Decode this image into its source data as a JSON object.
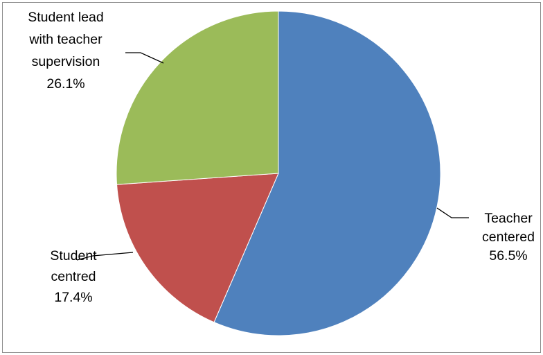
{
  "chart_data": {
    "type": "pie",
    "title": "",
    "slices": [
      {
        "label_lines": [
          "Teacher",
          "centered"
        ],
        "pct_label": "56.5%",
        "value": 56.5,
        "color": "#4f81bd"
      },
      {
        "label_lines": [
          "Student",
          "centred"
        ],
        "pct_label": "17.4%",
        "value": 17.4,
        "color": "#c0504d"
      },
      {
        "label_lines": [
          "Student lead",
          "with teacher",
          "supervision"
        ],
        "pct_label": "26.1%",
        "value": 26.1,
        "color": "#9bbb59"
      }
    ],
    "start": "12 o'clock",
    "direction": "clockwise",
    "legend": "none",
    "leader_line_color": "#000000",
    "border_color": "#8c8c8c"
  }
}
